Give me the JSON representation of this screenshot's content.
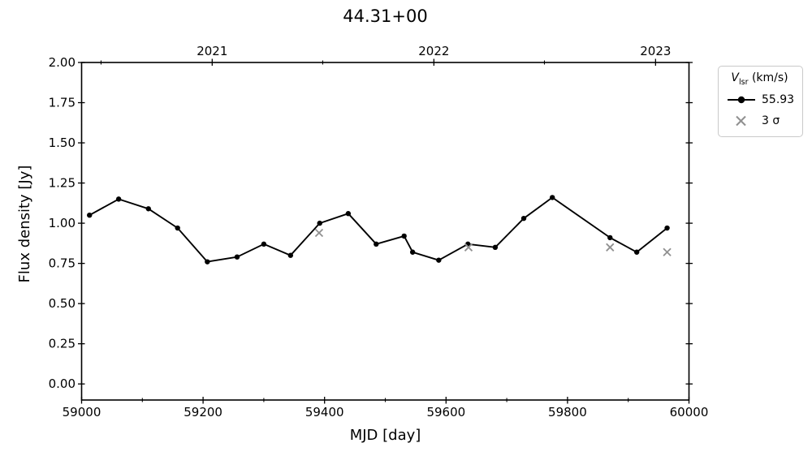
{
  "chart_data": {
    "type": "line",
    "title": "44.31+00",
    "xlabel": "MJD [day]",
    "ylabel": "Flux density [Jy]",
    "xlim": [
      59000,
      60000
    ],
    "ylim": [
      -0.1,
      2.0
    ],
    "grid": false,
    "x_ticks": {
      "major": [
        59000,
        59200,
        59400,
        59600,
        59800,
        60000
      ],
      "minor_step": 100
    },
    "y_ticks": {
      "major": [
        0.0,
        0.25,
        0.5,
        0.75,
        1.0,
        1.25,
        1.5,
        1.75,
        2.0
      ],
      "labels": [
        "0.00",
        "0.25",
        "0.50",
        "0.75",
        "1.00",
        "1.25",
        "1.50",
        "1.75",
        "2.00"
      ]
    },
    "top_axis": {
      "major": [
        {
          "mjd": 59215,
          "label": "2021"
        },
        {
          "mjd": 59580,
          "label": "2022"
        },
        {
          "mjd": 59945,
          "label": "2023"
        }
      ],
      "minor": [
        59032,
        59397,
        59762
      ]
    },
    "series": [
      {
        "name": "55.93",
        "marker": "circle",
        "color": "#000000",
        "points": [
          [
            59013,
            1.05
          ],
          [
            59061,
            1.15
          ],
          [
            59110,
            1.09
          ],
          [
            59158,
            0.97
          ],
          [
            59207,
            0.76
          ],
          [
            59256,
            0.79
          ],
          [
            59300,
            0.87
          ],
          [
            59344,
            0.8
          ],
          [
            59392,
            1.0
          ],
          [
            59439,
            1.06
          ],
          [
            59485,
            0.87
          ],
          [
            59531,
            0.92
          ],
          [
            59545,
            0.82
          ],
          [
            59588,
            0.77
          ],
          [
            59636,
            0.87
          ],
          [
            59681,
            0.85
          ],
          [
            59728,
            1.03
          ],
          [
            59775,
            1.16
          ],
          [
            59870,
            0.91
          ],
          [
            59914,
            0.82
          ],
          [
            59964,
            0.97
          ]
        ]
      },
      {
        "name": "3 σ",
        "marker": "x",
        "color": "#909090",
        "points": [
          [
            59391,
            0.94
          ],
          [
            59637,
            0.85
          ],
          [
            59870,
            0.85
          ],
          [
            59964,
            0.82
          ]
        ]
      }
    ],
    "legend": {
      "position": "outside-top-right",
      "title_var": "V",
      "title_sub": "lsr",
      "title_unit": " (km/s)",
      "entries": [
        {
          "marker": "line-circle",
          "label": "55.93"
        },
        {
          "marker": "x",
          "label": "3 σ"
        }
      ]
    }
  }
}
